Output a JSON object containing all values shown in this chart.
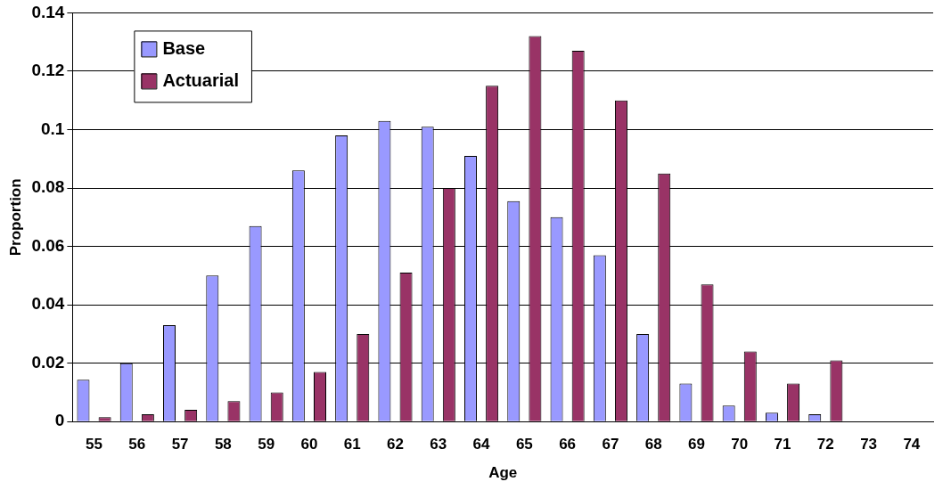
{
  "chart_data": {
    "type": "bar",
    "xlabel": "Age",
    "ylabel": "Proportion",
    "categories": [
      "55",
      "56",
      "57",
      "58",
      "59",
      "60",
      "61",
      "62",
      "63",
      "64",
      "65",
      "66",
      "67",
      "68",
      "69",
      "70",
      "71",
      "72",
      "73",
      "74"
    ],
    "series": [
      {
        "name": "Base",
        "color": "#9999ff",
        "values": [
          0.0143,
          0.02,
          0.033,
          0.05,
          0.067,
          0.086,
          0.098,
          0.103,
          0.101,
          0.091,
          0.0755,
          0.07,
          0.057,
          0.03,
          0.013,
          0.0055,
          0.003,
          0.0025,
          null,
          null
        ]
      },
      {
        "name": "Actuarial",
        "color": "#993366",
        "values": [
          0.0015,
          0.0025,
          0.004,
          0.007,
          0.01,
          0.017,
          0.03,
          0.051,
          0.08,
          0.115,
          0.132,
          0.127,
          0.11,
          0.085,
          0.047,
          0.024,
          0.013,
          0.021,
          null,
          null
        ]
      }
    ],
    "ylim": [
      0,
      0.14
    ],
    "yticks": [
      0,
      0.02,
      0.04,
      0.06,
      0.08,
      0.1,
      0.12,
      0.14
    ],
    "grid": "y",
    "legend": "top left"
  }
}
